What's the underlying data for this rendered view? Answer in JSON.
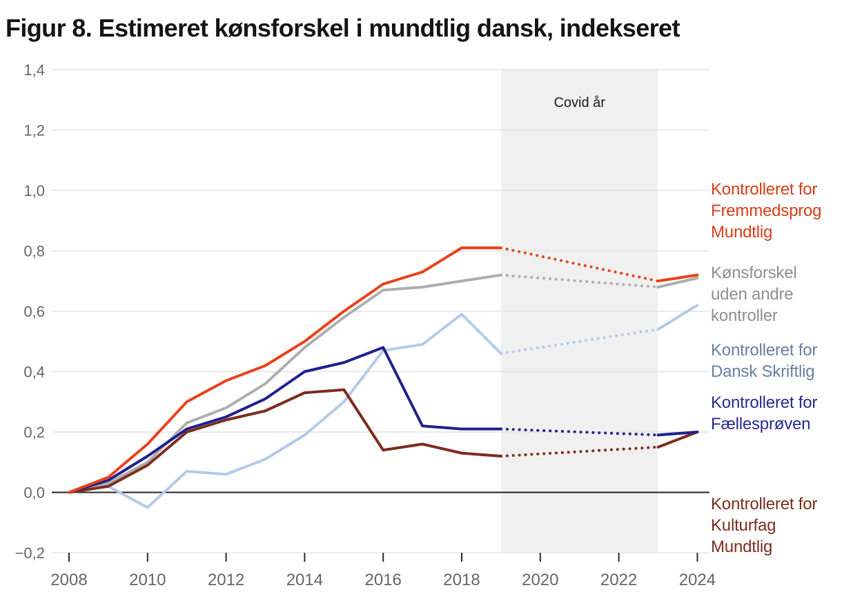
{
  "title": "Figur 8. Estimeret kønsforskel i mundtlig dansk, indekseret",
  "covid_band": {
    "label": "Covid år",
    "from_year": 2019,
    "to_year": 2023,
    "fill": "#f0f0f0",
    "label_color": "#1a1a1a"
  },
  "axes": {
    "y_ticks": [
      {
        "label": "1,4",
        "value": 1.4
      },
      {
        "label": "1,2",
        "value": 1.2
      },
      {
        "label": "1,0",
        "value": 1.0
      },
      {
        "label": "0,8",
        "value": 0.8
      },
      {
        "label": "0,6",
        "value": 0.6
      },
      {
        "label": "0,4",
        "value": 0.4
      },
      {
        "label": "0,2",
        "value": 0.2
      },
      {
        "label": "0,0",
        "value": 0.0
      },
      {
        "label": "−0,2",
        "value": -0.2
      }
    ],
    "x_ticks": [
      {
        "label": "2008",
        "value": 2008
      },
      {
        "label": "2010",
        "value": 2010
      },
      {
        "label": "2012",
        "value": 2012
      },
      {
        "label": "2014",
        "value": 2014
      },
      {
        "label": "2016",
        "value": 2016
      },
      {
        "label": "2018",
        "value": 2018
      },
      {
        "label": "2020",
        "value": 2020
      },
      {
        "label": "2022",
        "value": 2022
      },
      {
        "label": "2024",
        "value": 2024
      }
    ],
    "tick_color": "#666666",
    "gridline_color": "#e3e3e3",
    "zero_line_color": "#222222"
  },
  "chart_data": {
    "type": "line",
    "title": "Figur 8. Estimeret kønsforskel i mundtlig dansk, indekseret",
    "xlabel": "",
    "ylabel": "",
    "xlim": [
      2008,
      2024
    ],
    "ylim": [
      -0.2,
      1.4
    ],
    "grid": true,
    "legend_position": "right",
    "x": [
      2008,
      2009,
      2010,
      2011,
      2012,
      2013,
      2014,
      2015,
      2016,
      2017,
      2018,
      2019,
      2023,
      2024
    ],
    "dotted_segment": {
      "from_year": 2019,
      "to_year": 2023,
      "note": "Covid år interpolation shown dotted"
    },
    "series": [
      {
        "id": "dansk_skriftlig",
        "name": "Kontrolleret for Dansk Skriftlig",
        "label_lines": [
          "Kontrolleret for",
          "Dansk Skriftlig"
        ],
        "color": "#b5cae9",
        "label_color": "#6b7da3",
        "values": [
          0.0,
          0.02,
          -0.05,
          0.07,
          0.06,
          0.11,
          0.19,
          0.3,
          0.47,
          0.49,
          0.59,
          0.46,
          0.54,
          0.62
        ]
      },
      {
        "id": "uden_kontroller",
        "name": "Kønsforskel uden andre kontroller",
        "label_lines": [
          "Kønsforskel",
          "uden andre",
          "kontroller"
        ],
        "color": "#aeaeae",
        "label_color": "#8f8f8f",
        "values": [
          0.0,
          0.03,
          0.1,
          0.23,
          0.28,
          0.36,
          0.48,
          0.58,
          0.67,
          0.68,
          0.7,
          0.72,
          0.68,
          0.71
        ]
      },
      {
        "id": "kulturfag",
        "name": "Kontrolleret for Kulturfag Mundtlig",
        "label_lines": [
          "Kontrolleret for",
          "Kulturfag",
          "Mundtlig"
        ],
        "color": "#7c2d1d",
        "label_color": "#7c2d1d",
        "values": [
          0.0,
          0.02,
          0.09,
          0.2,
          0.24,
          0.27,
          0.33,
          0.34,
          0.14,
          0.16,
          0.13,
          0.12,
          0.15,
          0.2
        ]
      },
      {
        "id": "faellesproven",
        "name": "Kontrolleret for Fællesprøven",
        "label_lines": [
          "Kontrolleret for",
          "Fællesprøven"
        ],
        "color": "#1e218f",
        "label_color": "#28298f",
        "values": [
          0.0,
          0.04,
          0.12,
          0.21,
          0.25,
          0.31,
          0.4,
          0.43,
          0.48,
          0.22,
          0.21,
          0.21,
          0.19,
          0.2
        ]
      },
      {
        "id": "fremmedsprog",
        "name": "Kontrolleret for Fremmedsprog Mundtlig",
        "label_lines": [
          "Kontrolleret for",
          "Fremmedsprog",
          "Mundtlig"
        ],
        "color": "#e8421b",
        "label_color": "#d83d17",
        "values": [
          0.0,
          0.05,
          0.16,
          0.3,
          0.37,
          0.42,
          0.5,
          0.6,
          0.69,
          0.73,
          0.81,
          0.81,
          0.7,
          0.72
        ]
      }
    ]
  }
}
